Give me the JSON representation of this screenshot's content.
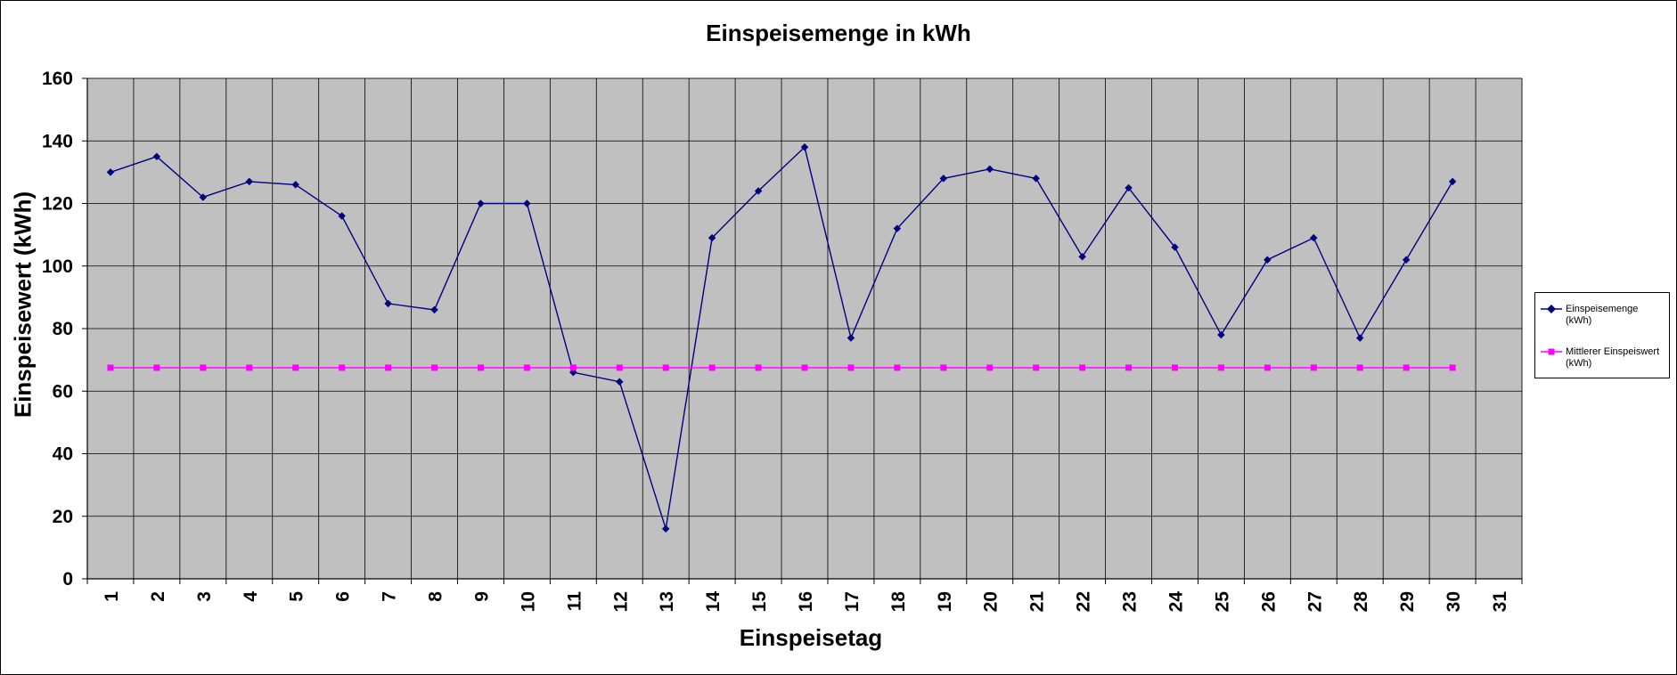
{
  "chart_data": {
    "type": "line",
    "title": "Einspeisemenge in kWh",
    "xlabel": "Einspeisetag",
    "ylabel": "Einspeisewert  (kWh)",
    "categories": [
      "1",
      "2",
      "3",
      "4",
      "5",
      "6",
      "7",
      "8",
      "9",
      "10",
      "11",
      "12",
      "13",
      "14",
      "15",
      "16",
      "17",
      "18",
      "19",
      "20",
      "21",
      "22",
      "23",
      "24",
      "25",
      "26",
      "27",
      "28",
      "29",
      "30",
      "31"
    ],
    "ylim": [
      0,
      160
    ],
    "yticks": [
      0,
      20,
      40,
      60,
      80,
      100,
      120,
      140,
      160
    ],
    "grid": true,
    "legend_position": "right",
    "plot_background": "#c0c0c0",
    "series": [
      {
        "name": "Einspeisemenge (kWh)",
        "color": "#000080",
        "marker": "diamond",
        "values": [
          130,
          135,
          122,
          127,
          126,
          116,
          88,
          86,
          120,
          120,
          66,
          63,
          16,
          109,
          124,
          138,
          77,
          112,
          128,
          131,
          128,
          103,
          125,
          106,
          78,
          102,
          109,
          77,
          102,
          127,
          null
        ]
      },
      {
        "name": "Mittlerer Einspeiswert (kWh)",
        "color": "#ff00ff",
        "marker": "square",
        "values": [
          67.5,
          67.5,
          67.5,
          67.5,
          67.5,
          67.5,
          67.5,
          67.5,
          67.5,
          67.5,
          67.5,
          67.5,
          67.5,
          67.5,
          67.5,
          67.5,
          67.5,
          67.5,
          67.5,
          67.5,
          67.5,
          67.5,
          67.5,
          67.5,
          67.5,
          67.5,
          67.5,
          67.5,
          67.5,
          67.5,
          null
        ]
      }
    ]
  }
}
